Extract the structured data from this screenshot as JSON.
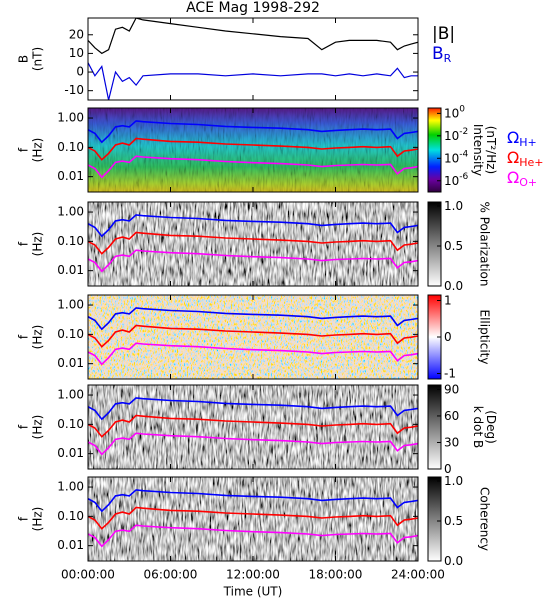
{
  "chart_data": [
    {
      "type": "line",
      "title": "ACE Mag 1998-292",
      "ylabel": [
        "B",
        "(nT)"
      ],
      "x": [
        0,
        0.5,
        1,
        1.5,
        2,
        2.5,
        3,
        3.5,
        4,
        6,
        8,
        10,
        12,
        14,
        16,
        17,
        18,
        19,
        20,
        21,
        22,
        22.5,
        23,
        23.5,
        24
      ],
      "xlim": [
        0,
        24
      ],
      "xticks": [
        {
          "value": 0,
          "label": "00:00:00"
        },
        {
          "value": 6,
          "label": "06:00:00"
        },
        {
          "value": 12,
          "label": "12:00:00"
        },
        {
          "value": 18,
          "label": "18:00:00"
        },
        {
          "value": 24,
          "label": "24:00:00"
        }
      ],
      "xlabel": "Time (UT)",
      "ylim": [
        -15,
        29
      ],
      "yticks": [
        -10,
        0,
        10,
        20
      ],
      "series": [
        {
          "name": "|B|",
          "color": "#000000",
          "values": [
            17,
            13,
            10,
            12,
            23,
            24,
            22,
            29,
            28,
            26,
            24,
            22,
            20.5,
            19,
            18,
            12,
            16,
            17,
            17,
            17,
            16,
            12,
            14,
            15,
            16
          ]
        },
        {
          "name": "B",
          "name_sub": "R",
          "color": "#0000dd",
          "values": [
            5,
            -2,
            3,
            -15,
            0,
            -5,
            -3,
            -7,
            -2,
            -1,
            -1,
            -2,
            -1,
            -2,
            -1,
            -1,
            -2,
            -1,
            -2,
            -1,
            -2,
            2,
            -3,
            -2,
            -2
          ]
        }
      ]
    },
    {
      "type": "spectrogram",
      "ylabel": [
        "f",
        "(Hz)"
      ],
      "log_y": true,
      "ylim": [
        0.003,
        2.2
      ],
      "yticks": [
        {
          "value": 1,
          "label": "1.00"
        },
        {
          "value": 0.1,
          "label": "0.10"
        },
        0.01
      ],
      "colormap": "jet",
      "colorbar_label": [
        "Intensity",
        "(nT²/Hz)"
      ],
      "colorbar_log": true,
      "clim": [
        1e-07,
        3
      ],
      "colorbar_ticks": [
        {
          "value": 1,
          "label": "10",
          "exponent": "0"
        },
        {
          "value": 0.01,
          "label": "10",
          "exponent": "-2"
        },
        {
          "value": 0.0001,
          "label": "10",
          "exponent": "-4"
        },
        {
          "value": 1e-06,
          "label": "10",
          "exponent": "-6"
        }
      ],
      "x": [
        0,
        0.5,
        1,
        1.5,
        2,
        2.5,
        3,
        3.5,
        4,
        6,
        8,
        10,
        12,
        14,
        16,
        17,
        18,
        19,
        20,
        21,
        22,
        22.5,
        23,
        23.5,
        24
      ],
      "series": [
        {
          "name": "Ω",
          "name_sub": "H+",
          "color": "#0000ff",
          "values": [
            0.4,
            0.3,
            0.15,
            0.25,
            0.5,
            0.55,
            0.5,
            0.8,
            0.75,
            0.65,
            0.6,
            0.52,
            0.48,
            0.45,
            0.4,
            0.35,
            0.38,
            0.4,
            0.42,
            0.4,
            0.42,
            0.2,
            0.3,
            0.32,
            0.35
          ]
        },
        {
          "name": "Ω",
          "name_sub": "He+",
          "color": "#ff0000",
          "values": [
            0.1,
            0.075,
            0.038,
            0.062,
            0.12,
            0.14,
            0.12,
            0.2,
            0.19,
            0.16,
            0.15,
            0.13,
            0.12,
            0.11,
            0.1,
            0.088,
            0.095,
            0.1,
            0.105,
            0.1,
            0.105,
            0.05,
            0.075,
            0.08,
            0.088
          ]
        },
        {
          "name": "Ω",
          "name_sub": "O+",
          "color": "#ff00ff",
          "values": [
            0.025,
            0.019,
            0.0095,
            0.016,
            0.031,
            0.034,
            0.031,
            0.05,
            0.047,
            0.041,
            0.038,
            0.033,
            0.03,
            0.028,
            0.025,
            0.022,
            0.024,
            0.025,
            0.026,
            0.025,
            0.026,
            0.0125,
            0.019,
            0.02,
            0.022
          ]
        }
      ]
    },
    {
      "type": "spectrogram",
      "ylabel": [
        "f",
        "(Hz)"
      ],
      "log_y": true,
      "ylim": [
        0.003,
        2.2
      ],
      "yticks": [
        {
          "value": 1,
          "label": "1.00"
        },
        {
          "value": 0.1,
          "label": "0.10"
        },
        0.01
      ],
      "colormap": "gray",
      "colorbar_label": [
        "% Polarization"
      ],
      "clim": [
        0,
        1.05
      ],
      "colorbar_ticks": [
        {
          "value": 1,
          "label": "1.0"
        },
        0.5,
        {
          "value": 0,
          "label": "0.0"
        }
      ]
    },
    {
      "type": "spectrogram",
      "ylabel": [
        "f",
        "(Hz)"
      ],
      "log_y": true,
      "ylim": [
        0.003,
        2.2
      ],
      "yticks": [
        {
          "value": 1,
          "label": "1.00"
        },
        {
          "value": 0.1,
          "label": "0.10"
        },
        0.01
      ],
      "colormap": "bwr",
      "colorbar_label": [
        "Ellipticity"
      ],
      "clim": [
        -1.15,
        1.15
      ],
      "colorbar_ticks": [
        1,
        0,
        -1
      ]
    },
    {
      "type": "spectrogram",
      "ylabel": [
        "f",
        "(Hz)"
      ],
      "log_y": true,
      "ylim": [
        0.003,
        2.2
      ],
      "yticks": [
        {
          "value": 1,
          "label": "1.00"
        },
        {
          "value": 0.1,
          "label": "0.10"
        },
        0.01
      ],
      "colormap": "gray",
      "colorbar_label": [
        "k dot B",
        "(Deg)"
      ],
      "clim": [
        0,
        95
      ],
      "colorbar_ticks": [
        90,
        60,
        30,
        0
      ]
    },
    {
      "type": "spectrogram",
      "ylabel": [
        "f",
        "(Hz)"
      ],
      "log_y": true,
      "ylim": [
        0.003,
        2.2
      ],
      "yticks": [
        {
          "value": 1,
          "label": "1.00"
        },
        {
          "value": 0.1,
          "label": "0.10"
        },
        0.01
      ],
      "colormap": "gray",
      "colorbar_label": [
        "Coherency"
      ],
      "clim": [
        0,
        1.05
      ],
      "colorbar_ticks": [
        {
          "value": 1,
          "label": "1.0"
        },
        0.5,
        {
          "value": 0,
          "label": "0.0"
        }
      ]
    }
  ]
}
